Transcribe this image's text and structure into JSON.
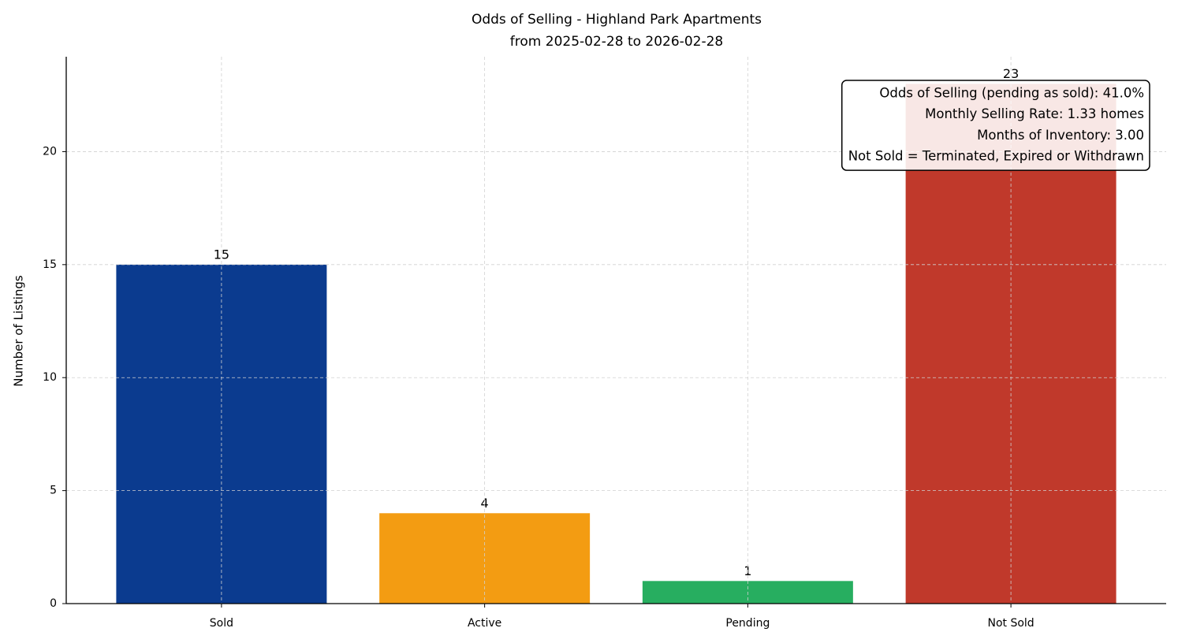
{
  "chart_data": {
    "type": "bar",
    "title": "Odds of Selling - Highland Park Apartments",
    "subtitle": "from 2025-02-28 to 2026-02-28",
    "y_label": "Number of Listings",
    "categories": [
      "Sold",
      "Active",
      "Pending",
      "Not Sold"
    ],
    "values": [
      15,
      4,
      1,
      23
    ],
    "colors": [
      "#0b3b8f",
      "#f39c12",
      "#27ae60",
      "#c0392b"
    ],
    "ylim": [
      0,
      24.2
    ],
    "yticks": [
      0,
      5,
      10,
      15,
      20
    ],
    "grid": true,
    "annotation": [
      "Odds of Selling (pending as sold): 41.0%",
      "Monthly Selling Rate: 1.33 homes",
      "Months of Inventory: 3.00",
      "Not Sold = Terminated, Expired or Withdrawn"
    ]
  }
}
